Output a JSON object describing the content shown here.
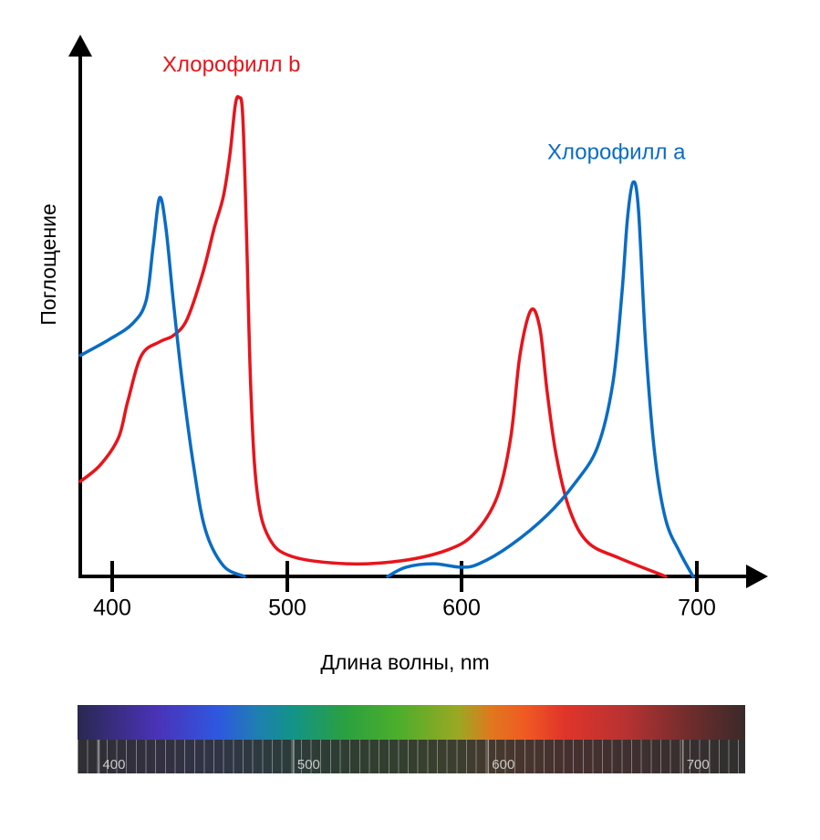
{
  "chart_data": {
    "type": "line",
    "xlabel": "Длина волны, nm",
    "ylabel": "Поглощение",
    "xlim": [
      382,
      730
    ],
    "xticks": [
      400,
      500,
      600,
      700
    ],
    "ylim": [
      0,
      1.1
    ],
    "series": [
      {
        "name": "Хлорофилл b",
        "color": "#e8141b",
        "x": [
          381.8,
          393.2,
          403.6,
          408.9,
          416.7,
          427.1,
          434.9,
          442.7,
          451.6,
          458.3,
          463.5,
          467.2,
          470.3,
          472.4,
          474.5,
          476.6,
          479.2,
          482.8,
          489.6,
          502.6,
          534.0,
          565.4,
          591.6,
          605.4,
          615.1,
          620.9,
          624.8,
          629.5,
          633.3,
          636.4,
          640.3,
          646.1,
          653.9,
          667.4,
          686.8
        ],
        "values": [
          0.195,
          0.229,
          0.285,
          0.36,
          0.454,
          0.482,
          0.495,
          0.528,
          0.622,
          0.716,
          0.781,
          0.866,
          0.969,
          0.984,
          0.95,
          0.716,
          0.379,
          0.172,
          0.079,
          0.041,
          0.026,
          0.032,
          0.054,
          0.088,
          0.163,
          0.285,
          0.454,
          0.547,
          0.51,
          0.379,
          0.247,
          0.135,
          0.069,
          0.037,
          0
        ]
      },
      {
        "name": "Хлорофилл a",
        "color": "#0a6cc4",
        "x": [
          381.8,
          398.4,
          411.5,
          419.3,
          423.4,
          427.1,
          430.7,
          434.9,
          440.1,
          446.4,
          453.1,
          463.5,
          475.5,
          520,
          557.6,
          568.1,
          583.8,
          599.5,
          607.4,
          620.9,
          636.4,
          648.1,
          657.8,
          664.3,
          668.2,
          670.5,
          672.9,
          675.2,
          678.3,
          682.2,
          686.8,
          692.6,
          698.4
        ],
        "values": [
          0.454,
          0.487,
          0.519,
          0.566,
          0.678,
          0.778,
          0.716,
          0.566,
          0.397,
          0.229,
          0.097,
          0.022,
          0,
          null,
          0,
          0.019,
          0.026,
          0.019,
          0.026,
          0.064,
          0.126,
          0.191,
          0.266,
          0.397,
          0.585,
          0.735,
          0.81,
          0.753,
          0.472,
          0.247,
          0.116,
          0.051,
          0
        ]
      }
    ],
    "spectrum": {
      "xlim": [
        389,
        732
      ],
      "xticks": [
        400,
        500,
        600,
        700
      ]
    }
  }
}
